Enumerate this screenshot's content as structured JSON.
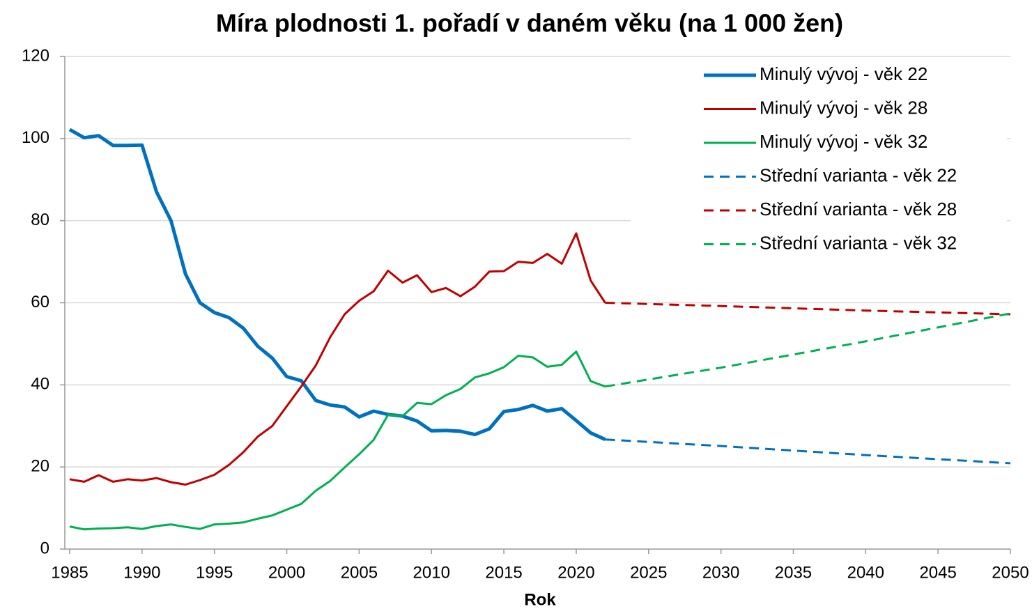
{
  "chart_data": {
    "type": "line",
    "title": "Míra plodnosti 1. pořadí v daném věku (na 1 000 žen)",
    "x_label": "Rok",
    "xlim": [
      1985,
      2050
    ],
    "xticks": [
      1985,
      1990,
      1995,
      2000,
      2005,
      2010,
      2015,
      2020,
      2025,
      2030,
      2035,
      2040,
      2045,
      2050
    ],
    "ylim": [
      0,
      120
    ],
    "yticks": [
      0,
      20,
      40,
      60,
      80,
      100,
      120
    ],
    "grid": true,
    "legend": "upper right",
    "series": [
      {
        "name": "Minulý vývoj - věk 22",
        "color": "#0070c0",
        "dashed": false,
        "x": [
          1985,
          1986,
          1987,
          1988,
          1989,
          1990,
          1991,
          1992,
          1993,
          1994,
          1995,
          1996,
          1997,
          1998,
          1999,
          2000,
          2001,
          2002,
          2003,
          2004,
          2005,
          2006,
          2007,
          2008,
          2009,
          2010,
          2011,
          2012,
          2013,
          2014,
          2015,
          2016,
          2017,
          2018,
          2019,
          2020,
          2021,
          2022
        ],
        "values": [
          102.2,
          100.2,
          100.7,
          98.3,
          98.3,
          98.4,
          87,
          80,
          67,
          60,
          57.6,
          56.4,
          53.8,
          49.4,
          46.5,
          42,
          41,
          36.2,
          35.1,
          34.6,
          32.2,
          33.6,
          32.8,
          32.4,
          31.2,
          28.8,
          28.9,
          28.7,
          27.9,
          29.3,
          33.5,
          34,
          35,
          33.6,
          34.2,
          31.3,
          28.3,
          26.7
        ]
      },
      {
        "name": "Minulý vývoj - věk 28",
        "color": "#c00000",
        "dashed": false,
        "x": [
          1985,
          1986,
          1987,
          1988,
          1989,
          1990,
          1991,
          1992,
          1993,
          1994,
          1995,
          1996,
          1997,
          1998,
          1999,
          2000,
          2001,
          2002,
          2003,
          2004,
          2005,
          2006,
          2007,
          2008,
          2009,
          2010,
          2011,
          2012,
          2013,
          2014,
          2015,
          2016,
          2017,
          2018,
          2019,
          2020,
          2021,
          2022
        ],
        "values": [
          17,
          16.4,
          18,
          16.4,
          17,
          16.7,
          17.3,
          16.3,
          15.7,
          16.8,
          18.1,
          20.5,
          23.6,
          27.4,
          30,
          34.8,
          39.6,
          44.7,
          51.6,
          57.2,
          60.5,
          62.8,
          67.8,
          64.9,
          66.7,
          62.6,
          63.6,
          61.6,
          63.9,
          67.6,
          67.7,
          70,
          69.7,
          71.9,
          69.5,
          76.9,
          65.4,
          60
        ]
      },
      {
        "name": "Minulý vývoj - věk 32",
        "color": "#00b050",
        "dashed": false,
        "x": [
          1985,
          1986,
          1987,
          1988,
          1989,
          1990,
          1991,
          1992,
          1993,
          1994,
          1995,
          1996,
          1997,
          1998,
          1999,
          2000,
          2001,
          2002,
          2003,
          2004,
          2005,
          2006,
          2007,
          2008,
          2009,
          2010,
          2011,
          2012,
          2013,
          2014,
          2015,
          2016,
          2017,
          2018,
          2019,
          2020,
          2021,
          2022
        ],
        "values": [
          5.5,
          4.8,
          5,
          5.1,
          5.3,
          4.9,
          5.6,
          6,
          5.4,
          4.9,
          6,
          6.2,
          6.5,
          7.4,
          8.2,
          9.6,
          11,
          14.2,
          16.6,
          19.9,
          23.1,
          26.6,
          32.7,
          32.4,
          35.6,
          35.3,
          37.5,
          39,
          41.8,
          42.8,
          44.3,
          47.1,
          46.7,
          44.4,
          44.9,
          48.1,
          40.9,
          39.6
        ]
      },
      {
        "name": "Střední varianta - věk 22",
        "color": "#0070c0",
        "dashed": true,
        "x": [
          2022,
          2030,
          2040,
          2050
        ],
        "values": [
          26.7,
          25.1,
          22.9,
          20.9
        ]
      },
      {
        "name": "Střední varianta - věk 28",
        "color": "#c00000",
        "dashed": true,
        "x": [
          2022,
          2030,
          2040,
          2050
        ],
        "values": [
          60,
          59.2,
          58.1,
          57.2
        ]
      },
      {
        "name": "Střední varianta - věk 32",
        "color": "#00b050",
        "dashed": true,
        "x": [
          2022,
          2030,
          2040,
          2050
        ],
        "values": [
          39.6,
          44.2,
          50.6,
          57.4
        ]
      }
    ]
  }
}
